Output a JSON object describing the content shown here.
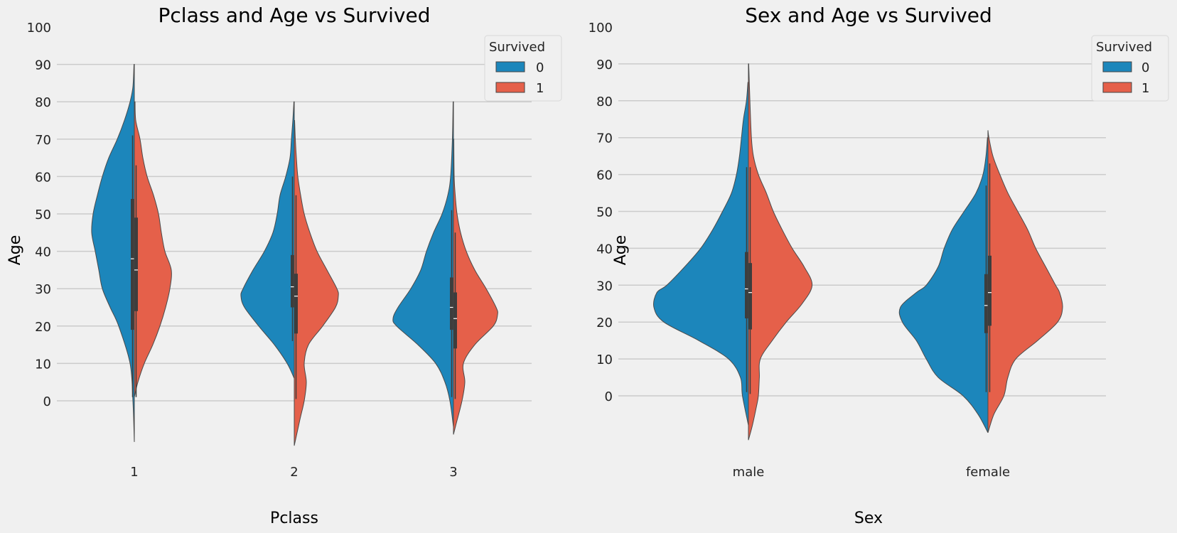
{
  "colors": {
    "survived_0": "#1c86bb",
    "survived_1": "#e5604a",
    "box": "#3d3d3d",
    "median": "#ffffff",
    "outline": "#4a4a4a"
  },
  "chart_data": [
    {
      "type": "violin",
      "title": "Pclass and Age vs Survived",
      "xlabel": "Pclass",
      "ylabel": "Age",
      "categories": [
        "1",
        "2",
        "3"
      ],
      "yticks": [
        "0",
        "10",
        "20",
        "30",
        "40",
        "50",
        "60",
        "70",
        "80",
        "90",
        "100"
      ],
      "ylim": [
        -12,
        100
      ],
      "grid": true,
      "legend": {
        "title": "Survived",
        "entries": [
          "0",
          "1"
        ],
        "placement": "top-right"
      },
      "series": [
        {
          "name": "0",
          "violins": [
            {
              "category": "1",
              "profile": [
                [
                  -11,
                  0
                ],
                [
                  0,
                  0.02
                ],
                [
                  10,
                  0.06
                ],
                [
                  20,
                  0.22
                ],
                [
                  25,
                  0.34
                ],
                [
                  30,
                  0.45
                ],
                [
                  35,
                  0.5
                ],
                [
                  40,
                  0.55
                ],
                [
                  45,
                  0.6
                ],
                [
                  50,
                  0.58
                ],
                [
                  55,
                  0.52
                ],
                [
                  60,
                  0.45
                ],
                [
                  65,
                  0.36
                ],
                [
                  70,
                  0.24
                ],
                [
                  75,
                  0.14
                ],
                [
                  80,
                  0.06
                ],
                [
                  84,
                  0.02
                ],
                [
                  90,
                  0.005
                ]
              ],
              "box": [
                19,
                54,
                38,
                1,
                71
              ]
            },
            {
              "category": "2",
              "profile": [
                [
                  6,
                  0
                ],
                [
                  10,
                  0.1
                ],
                [
                  15,
                  0.28
                ],
                [
                  20,
                  0.5
                ],
                [
                  25,
                  0.7
                ],
                [
                  28,
                  0.75
                ],
                [
                  30,
                  0.72
                ],
                [
                  35,
                  0.58
                ],
                [
                  40,
                  0.42
                ],
                [
                  45,
                  0.3
                ],
                [
                  50,
                  0.24
                ],
                [
                  55,
                  0.2
                ],
                [
                  60,
                  0.12
                ],
                [
                  65,
                  0.06
                ],
                [
                  70,
                  0.04
                ],
                [
                  75,
                  0.02
                ],
                [
                  80,
                  0.005
                ]
              ],
              "box": [
                25,
                39,
                30.5,
                16,
                60
              ]
            },
            {
              "category": "3",
              "profile": [
                [
                  -7,
                  0
                ],
                [
                  0,
                  0.05
                ],
                [
                  5,
                  0.12
                ],
                [
                  10,
                  0.25
                ],
                [
                  15,
                  0.5
                ],
                [
                  20,
                  0.8
                ],
                [
                  22,
                  0.85
                ],
                [
                  25,
                  0.78
                ],
                [
                  30,
                  0.6
                ],
                [
                  35,
                  0.46
                ],
                [
                  40,
                  0.38
                ],
                [
                  45,
                  0.28
                ],
                [
                  50,
                  0.16
                ],
                [
                  55,
                  0.08
                ],
                [
                  60,
                  0.04
                ],
                [
                  70,
                  0.015
                ],
                [
                  80,
                  0.005
                ]
              ],
              "box": [
                19,
                33,
                25,
                1,
                51
              ]
            }
          ]
        },
        {
          "name": "1",
          "violins": [
            {
              "category": "1",
              "profile": [
                [
                  1,
                  0
                ],
                [
                  5,
                  0.05
                ],
                [
                  10,
                  0.14
                ],
                [
                  15,
                  0.26
                ],
                [
                  20,
                  0.36
                ],
                [
                  25,
                  0.44
                ],
                [
                  30,
                  0.5
                ],
                [
                  35,
                  0.52
                ],
                [
                  40,
                  0.43
                ],
                [
                  45,
                  0.38
                ],
                [
                  50,
                  0.34
                ],
                [
                  55,
                  0.27
                ],
                [
                  60,
                  0.18
                ],
                [
                  65,
                  0.12
                ],
                [
                  70,
                  0.08
                ],
                [
                  75,
                  0.02
                ],
                [
                  80,
                  0.01
                ]
              ],
              "box": [
                24,
                49,
                35,
                1,
                63
              ]
            },
            {
              "category": "2",
              "profile": [
                [
                  -12,
                  0
                ],
                [
                  -5,
                  0.08
                ],
                [
                  0,
                  0.14
                ],
                [
                  5,
                  0.17
                ],
                [
                  10,
                  0.14
                ],
                [
                  15,
                  0.2
                ],
                [
                  20,
                  0.4
                ],
                [
                  25,
                  0.58
                ],
                [
                  28,
                  0.62
                ],
                [
                  30,
                  0.6
                ],
                [
                  35,
                  0.46
                ],
                [
                  40,
                  0.32
                ],
                [
                  45,
                  0.22
                ],
                [
                  50,
                  0.14
                ],
                [
                  55,
                  0.09
                ],
                [
                  60,
                  0.05
                ],
                [
                  65,
                  0.03
                ],
                [
                  70,
                  0.015
                ],
                [
                  75,
                  0.005
                ]
              ],
              "box": [
                18,
                34,
                28,
                0.5,
                55
              ]
            },
            {
              "category": "3",
              "profile": [
                [
                  -9,
                  0
                ],
                [
                  -6,
                  0.04
                ],
                [
                  0,
                  0.12
                ],
                [
                  5,
                  0.16
                ],
                [
                  10,
                  0.14
                ],
                [
                  15,
                  0.3
                ],
                [
                  20,
                  0.56
                ],
                [
                  23,
                  0.62
                ],
                [
                  25,
                  0.6
                ],
                [
                  30,
                  0.46
                ],
                [
                  35,
                  0.3
                ],
                [
                  40,
                  0.18
                ],
                [
                  45,
                  0.1
                ],
                [
                  50,
                  0.05
                ],
                [
                  55,
                  0.025
                ],
                [
                  60,
                  0.01
                ],
                [
                  70,
                  0.005
                ]
              ],
              "box": [
                14,
                29,
                22,
                0.5,
                45
              ]
            }
          ]
        }
      ]
    },
    {
      "type": "violin",
      "title": "Sex and Age vs Survived",
      "xlabel": "Sex",
      "ylabel": "Age",
      "categories": [
        "male",
        "female"
      ],
      "yticks": [
        "0",
        "10",
        "20",
        "30",
        "40",
        "50",
        "60",
        "70",
        "80",
        "90",
        "100"
      ],
      "ylim": [
        -12,
        100
      ],
      "grid": true,
      "legend": {
        "title": "Survived",
        "entries": [
          "0",
          "1"
        ],
        "placement": "top-right"
      },
      "series": [
        {
          "name": "0",
          "violins": [
            {
              "category": "male",
              "profile": [
                [
                  -8,
                  0
                ],
                [
                  0,
                  0.06
                ],
                [
                  5,
                  0.08
                ],
                [
                  10,
                  0.2
                ],
                [
                  15,
                  0.5
                ],
                [
                  20,
                  0.85
                ],
                [
                  24,
                  0.95
                ],
                [
                  28,
                  0.92
                ],
                [
                  30,
                  0.82
                ],
                [
                  35,
                  0.64
                ],
                [
                  40,
                  0.48
                ],
                [
                  45,
                  0.36
                ],
                [
                  50,
                  0.26
                ],
                [
                  55,
                  0.17
                ],
                [
                  60,
                  0.12
                ],
                [
                  65,
                  0.09
                ],
                [
                  70,
                  0.07
                ],
                [
                  75,
                  0.05
                ],
                [
                  80,
                  0.02
                ],
                [
                  85,
                  0.005
                ]
              ],
              "box": [
                21,
                39,
                29,
                1,
                62
              ]
            },
            {
              "category": "female",
              "profile": [
                [
                  -10,
                  0
                ],
                [
                  -5,
                  0.1
                ],
                [
                  0,
                  0.25
                ],
                [
                  5,
                  0.5
                ],
                [
                  10,
                  0.62
                ],
                [
                  15,
                  0.72
                ],
                [
                  20,
                  0.86
                ],
                [
                  24,
                  0.88
                ],
                [
                  28,
                  0.72
                ],
                [
                  30,
                  0.62
                ],
                [
                  35,
                  0.5
                ],
                [
                  40,
                  0.44
                ],
                [
                  45,
                  0.36
                ],
                [
                  50,
                  0.24
                ],
                [
                  55,
                  0.12
                ],
                [
                  60,
                  0.05
                ],
                [
                  65,
                  0.02
                ],
                [
                  70,
                  0.005
                ]
              ],
              "box": [
                17,
                33,
                24.5,
                1,
                57
              ]
            }
          ]
        },
        {
          "name": "1",
          "violins": [
            {
              "category": "male",
              "profile": [
                [
                  -12,
                  0
                ],
                [
                  -8,
                  0.04
                ],
                [
                  -3,
                  0.08
                ],
                [
                  0,
                  0.1
                ],
                [
                  5,
                  0.11
                ],
                [
                  10,
                  0.12
                ],
                [
                  15,
                  0.24
                ],
                [
                  20,
                  0.38
                ],
                [
                  25,
                  0.54
                ],
                [
                  30,
                  0.64
                ],
                [
                  35,
                  0.56
                ],
                [
                  40,
                  0.44
                ],
                [
                  45,
                  0.34
                ],
                [
                  50,
                  0.25
                ],
                [
                  55,
                  0.18
                ],
                [
                  60,
                  0.1
                ],
                [
                  65,
                  0.05
                ],
                [
                  70,
                  0.03
                ],
                [
                  80,
                  0.015
                ],
                [
                  90,
                  0.003
                ]
              ],
              "box": [
                18,
                36,
                28,
                0.5,
                62
              ]
            },
            {
              "category": "female",
              "profile": [
                [
                  -10,
                  0
                ],
                [
                  -5,
                  0.06
                ],
                [
                  0,
                  0.16
                ],
                [
                  5,
                  0.2
                ],
                [
                  10,
                  0.28
                ],
                [
                  15,
                  0.5
                ],
                [
                  20,
                  0.7
                ],
                [
                  24,
                  0.75
                ],
                [
                  28,
                  0.72
                ],
                [
                  30,
                  0.68
                ],
                [
                  35,
                  0.58
                ],
                [
                  40,
                  0.48
                ],
                [
                  45,
                  0.4
                ],
                [
                  50,
                  0.3
                ],
                [
                  55,
                  0.2
                ],
                [
                  60,
                  0.12
                ],
                [
                  65,
                  0.05
                ],
                [
                  70,
                  0.01
                ],
                [
                  72,
                  0
                ]
              ],
              "box": [
                19,
                38,
                28,
                1,
                63
              ]
            }
          ]
        }
      ]
    }
  ]
}
